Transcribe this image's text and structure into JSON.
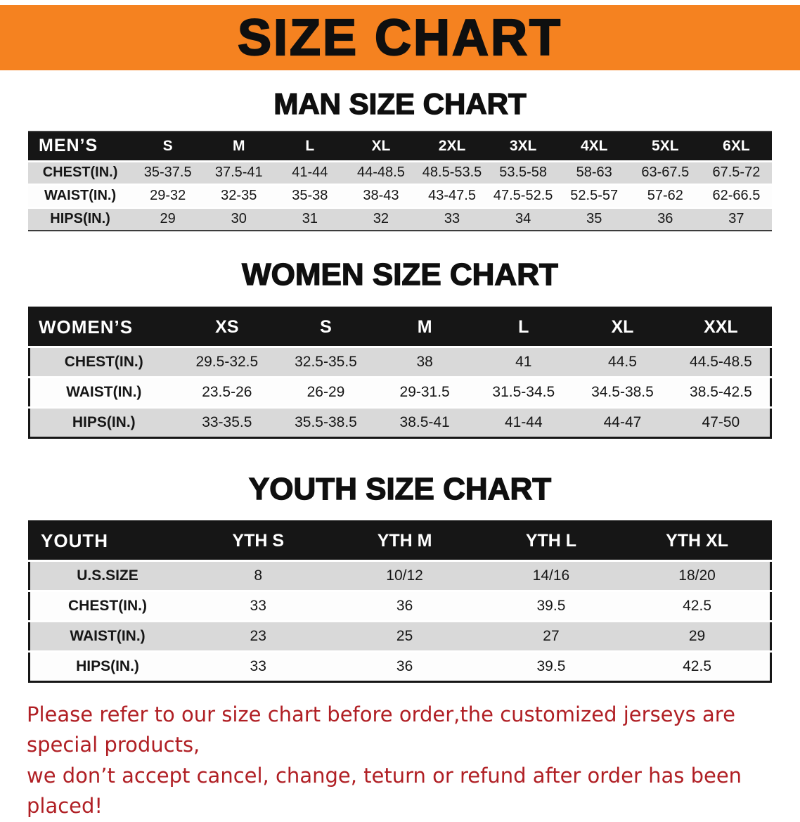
{
  "banner": {
    "title": "SIZE CHART"
  },
  "sections": [
    {
      "id": "men",
      "heading": "MAN SIZE CHART",
      "table": {
        "header": [
          "MEN’S",
          "S",
          "M",
          "L",
          "XL",
          "2XL",
          "3XL",
          "4XL",
          "5XL",
          "6XL"
        ],
        "rows": [
          [
            "CHEST(IN.)",
            "35-37.5",
            "37.5-41",
            "41-44",
            "44-48.5",
            "48.5-53.5",
            "53.5-58",
            "58-63",
            "63-67.5",
            "67.5-72"
          ],
          [
            "WAIST(IN.)",
            "29-32",
            "32-35",
            "35-38",
            "38-43",
            "43-47.5",
            "47.5-52.5",
            "52.5-57",
            "57-62",
            "62-66.5"
          ],
          [
            "HIPS(IN.)",
            "29",
            "30",
            "31",
            "32",
            "33",
            "34",
            "35",
            "36",
            "37"
          ]
        ]
      }
    },
    {
      "id": "women",
      "heading": "WOMEN SIZE CHART",
      "table": {
        "header": [
          "WOMEN’S",
          "XS",
          "S",
          "M",
          "L",
          "XL",
          "XXL"
        ],
        "rows": [
          [
            "CHEST(IN.)",
            "29.5-32.5",
            "32.5-35.5",
            "38",
            "41",
            "44.5",
            "44.5-48.5"
          ],
          [
            "WAIST(IN.)",
            "23.5-26",
            "26-29",
            "29-31.5",
            "31.5-34.5",
            "34.5-38.5",
            "38.5-42.5"
          ],
          [
            "HIPS(IN.)",
            "33-35.5",
            "35.5-38.5",
            "38.5-41",
            "41-44",
            "44-47",
            "47-50"
          ]
        ]
      }
    },
    {
      "id": "youth",
      "heading": "YOUTH SIZE CHART",
      "table": {
        "header": [
          "YOUTH",
          "YTH S",
          "YTH M",
          "YTH L",
          "YTH XL"
        ],
        "rows": [
          [
            "U.S.SIZE",
            "8",
            "10/12",
            "14/16",
            "18/20"
          ],
          [
            "CHEST(IN.)",
            "33",
            "36",
            "39.5",
            "42.5"
          ],
          [
            "WAIST(IN.)",
            "23",
            "25",
            "27",
            "29"
          ],
          [
            "HIPS(IN.)",
            "33",
            "36",
            "39.5",
            "42.5"
          ]
        ]
      }
    }
  ],
  "disclaimer": {
    "line1": "Please refer to our size chart before order,the customized jerseys are special products,",
    "line2": "we don’t accept cancel, change, teturn or refund after order has been placed!"
  },
  "colors": {
    "banner_orange": "#f58220",
    "header_black": "#161616",
    "row_gray": "#d9d9d9",
    "row_white": "#fdfdfd",
    "disclaimer_red": "#b01f24"
  }
}
